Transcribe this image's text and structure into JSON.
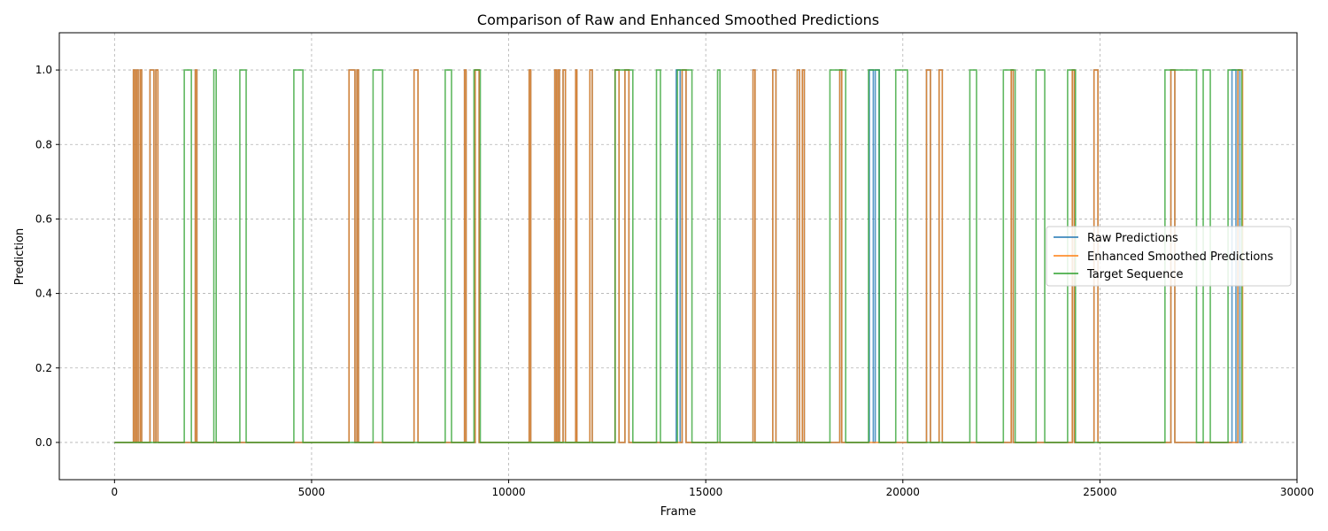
{
  "chart_data": {
    "type": "line",
    "title": "Comparison of Raw and Enhanced Smoothed Predictions",
    "xlabel": "Frame",
    "ylabel": "Prediction",
    "xlim": [
      -1400,
      30000
    ],
    "ylim": [
      -0.1,
      1.1
    ],
    "xticks": [
      0,
      5000,
      10000,
      15000,
      20000,
      25000,
      30000
    ],
    "yticks": [
      0.0,
      0.2,
      0.4,
      0.6,
      0.8,
      1.0
    ],
    "xtick_labels": [
      "0",
      "5000",
      "10000",
      "15000",
      "20000",
      "25000",
      "30000"
    ],
    "ytick_labels": [
      "0.0",
      "0.2",
      "0.4",
      "0.6",
      "0.8",
      "1.0"
    ],
    "grid": true,
    "legend_position": "center-right",
    "x_end": 28600,
    "series": [
      {
        "name": "Raw Predictions",
        "color": "#1f77b4",
        "high_intervals": [
          [
            480,
            520
          ],
          [
            560,
            600
          ],
          [
            650,
            690
          ],
          [
            900,
            1000
          ],
          [
            1050,
            1100
          ],
          [
            2050,
            2090
          ],
          [
            5950,
            6100
          ],
          [
            6150,
            6190
          ],
          [
            7600,
            7700
          ],
          [
            8880,
            8920
          ],
          [
            9150,
            9250
          ],
          [
            10520,
            10560
          ],
          [
            11170,
            11210
          ],
          [
            11250,
            11290
          ],
          [
            11380,
            11440
          ],
          [
            11700,
            11730
          ],
          [
            12060,
            12120
          ],
          [
            12700,
            12800
          ],
          [
            12950,
            13050
          ],
          [
            14250,
            14350
          ],
          [
            14400,
            14500
          ],
          [
            16200,
            16250
          ],
          [
            16700,
            16780
          ],
          [
            17320,
            17380
          ],
          [
            17450,
            17500
          ],
          [
            18400,
            18450
          ],
          [
            19150,
            19250
          ],
          [
            19300,
            19400
          ],
          [
            20600,
            20700
          ],
          [
            20920,
            21000
          ],
          [
            22750,
            22800
          ],
          [
            24300,
            24350
          ],
          [
            24850,
            24950
          ],
          [
            26800,
            26900
          ],
          [
            28350,
            28450
          ],
          [
            28500,
            28550
          ]
        ]
      },
      {
        "name": "Enhanced Smoothed Predictions",
        "color": "#ff7f0e",
        "high_intervals": [
          [
            480,
            520
          ],
          [
            560,
            600
          ],
          [
            650,
            690
          ],
          [
            900,
            1000
          ],
          [
            1050,
            1100
          ],
          [
            2050,
            2090
          ],
          [
            5950,
            6100
          ],
          [
            6150,
            6190
          ],
          [
            7600,
            7700
          ],
          [
            8880,
            8920
          ],
          [
            9150,
            9250
          ],
          [
            10520,
            10560
          ],
          [
            11170,
            11210
          ],
          [
            11250,
            11290
          ],
          [
            11380,
            11440
          ],
          [
            11700,
            11730
          ],
          [
            12060,
            12120
          ],
          [
            12700,
            12800
          ],
          [
            12950,
            13050
          ],
          [
            14400,
            14500
          ],
          [
            16200,
            16250
          ],
          [
            16700,
            16780
          ],
          [
            17320,
            17380
          ],
          [
            17450,
            17500
          ],
          [
            18400,
            18450
          ],
          [
            20600,
            20700
          ],
          [
            20920,
            21000
          ],
          [
            22750,
            22800
          ],
          [
            24300,
            24350
          ],
          [
            24850,
            24950
          ],
          [
            26800,
            26900
          ],
          [
            28500,
            28620
          ]
        ]
      },
      {
        "name": "Target Sequence",
        "color": "#2ca02c",
        "high_intervals": [
          [
            1770,
            1950
          ],
          [
            2520,
            2580
          ],
          [
            3180,
            3340
          ],
          [
            4550,
            4780
          ],
          [
            6560,
            6800
          ],
          [
            8390,
            8550
          ],
          [
            9120,
            9280
          ],
          [
            12700,
            13150
          ],
          [
            13750,
            13850
          ],
          [
            14280,
            14650
          ],
          [
            15300,
            15360
          ],
          [
            18150,
            18550
          ],
          [
            19130,
            19400
          ],
          [
            19820,
            20120
          ],
          [
            21700,
            21870
          ],
          [
            22550,
            22850
          ],
          [
            23380,
            23600
          ],
          [
            24180,
            24380
          ],
          [
            26650,
            27450
          ],
          [
            27620,
            27800
          ],
          [
            28250,
            28600
          ]
        ]
      }
    ]
  }
}
